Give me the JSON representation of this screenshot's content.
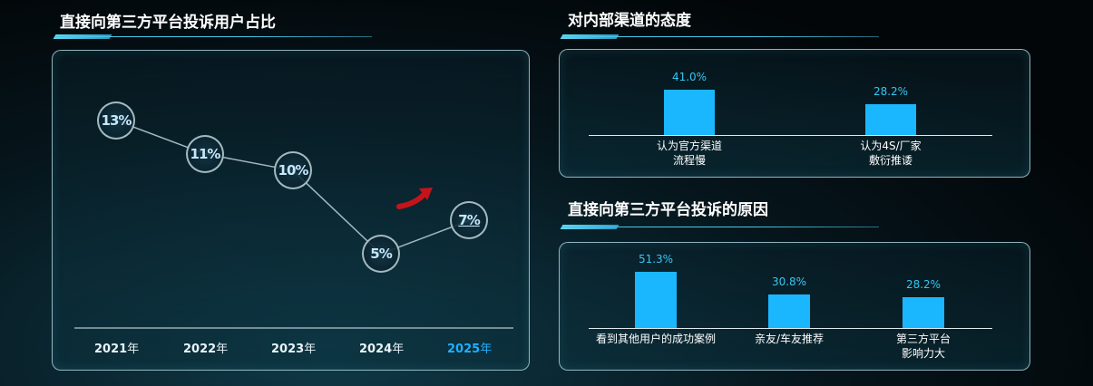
{
  "headings": {
    "left": "直接向第三方平台投诉用户占比",
    "top_right": "对内部渠道的态度",
    "bottom_right": "直接向第三方平台投诉的原因"
  },
  "chart_data": [
    {
      "type": "line",
      "title": "直接向第三方平台投诉用户占比",
      "x": [
        "2021年",
        "2022年",
        "2023年",
        "2024年",
        "2025年"
      ],
      "x_year": [
        "2021",
        "2022",
        "2023",
        "2024",
        "2025"
      ],
      "x_unit": "年",
      "values": [
        13,
        11,
        10,
        5,
        7
      ],
      "labels": [
        "13%",
        "11%",
        "10%",
        "5%",
        "7%"
      ],
      "highlight_index": 4,
      "trend_arrow": "up",
      "colors": {
        "line": "#9fb8c2",
        "highlight": "#1fb0ff",
        "arrow": "#c4141b"
      }
    },
    {
      "type": "bar",
      "title": "对内部渠道的态度",
      "categories": [
        [
          "认为官方渠道",
          "流程慢"
        ],
        [
          "认为4S/厂家",
          "敷衍推诿"
        ]
      ],
      "values": [
        41.0,
        28.2
      ],
      "labels": [
        "41.0%",
        "28.2%"
      ],
      "ylim": [
        0,
        60
      ],
      "color": "#1ab7ff"
    },
    {
      "type": "bar",
      "title": "直接向第三方平台投诉的原因",
      "categories": [
        [
          "看到其他用户的成功案例"
        ],
        [
          "亲友/车友推荐"
        ],
        [
          "第三方平台",
          "影响力大"
        ]
      ],
      "values": [
        51.3,
        30.8,
        28.2
      ],
      "labels": [
        "51.3%",
        "30.8%",
        "28.2%"
      ],
      "ylim": [
        0,
        60
      ],
      "color": "#1ab7ff"
    }
  ]
}
